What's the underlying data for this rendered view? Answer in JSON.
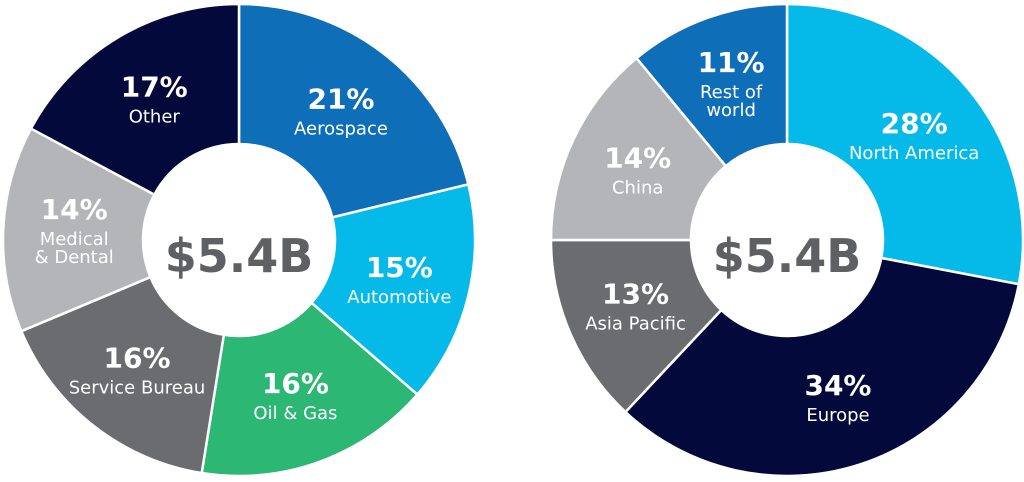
{
  "chart_data": [
    {
      "type": "pie",
      "center_label": "$5.4B",
      "slices": [
        {
          "value": 21,
          "pct": "21%",
          "label": [
            "Aerospace"
          ],
          "color": "#0e6eb8"
        },
        {
          "value": 15,
          "pct": "15%",
          "label": [
            "Automotive"
          ],
          "color": "#05b9e8"
        },
        {
          "value": 16,
          "pct": "16%",
          "label": [
            "Oil & Gas"
          ],
          "color": "#2cb775"
        },
        {
          "value": 16,
          "pct": "16%",
          "label": [
            "Service Bureau"
          ],
          "color": "#6b6c6f"
        },
        {
          "value": 14,
          "pct": "14%",
          "label": [
            "Medical",
            "& Dental"
          ],
          "color": "#b3b5b8"
        },
        {
          "value": 17,
          "pct": "17%",
          "label": [
            "Other"
          ],
          "color": "#03093a"
        }
      ]
    },
    {
      "type": "pie",
      "center_label": "$5.4B",
      "slices": [
        {
          "value": 28,
          "pct": "28%",
          "label": [
            "North America"
          ],
          "color": "#05b9e8"
        },
        {
          "value": 34,
          "pct": "34%",
          "label": [
            "Europe"
          ],
          "color": "#03093a"
        },
        {
          "value": 13,
          "pct": "13%",
          "label": [
            "Asia Pacific"
          ],
          "color": "#6b6c6f"
        },
        {
          "value": 14,
          "pct": "14%",
          "label": [
            "China"
          ],
          "color": "#b3b5b8"
        },
        {
          "value": 11,
          "pct": "11%",
          "label": [
            "Rest of",
            "world"
          ],
          "color": "#0e6eb8"
        }
      ]
    }
  ]
}
